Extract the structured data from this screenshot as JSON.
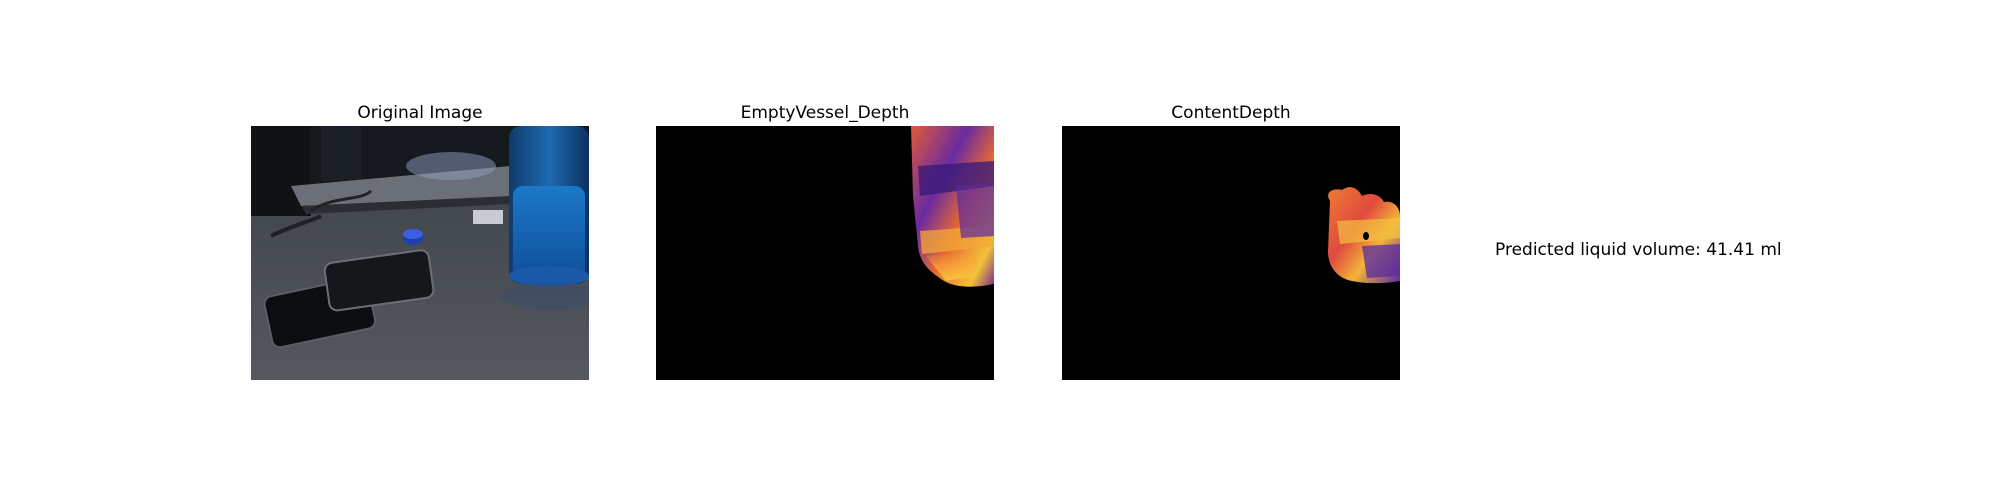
{
  "panels": [
    {
      "title": "Original Image",
      "image": "original-photo-desk-phones-bottle"
    },
    {
      "title": "EmptyVessel_Depth",
      "image": "empty-vessel-depth-heatmap"
    },
    {
      "title": "ContentDepth",
      "image": "content-depth-heatmap"
    }
  ],
  "prediction": {
    "text": "Predicted liquid volume: 41.41 ml"
  },
  "colors": {
    "background": "#ffffff",
    "depth_background": "#000000",
    "heatmap_low": "#3a1a7a",
    "heatmap_mid": "#e0503a",
    "heatmap_high": "#f5d040"
  }
}
